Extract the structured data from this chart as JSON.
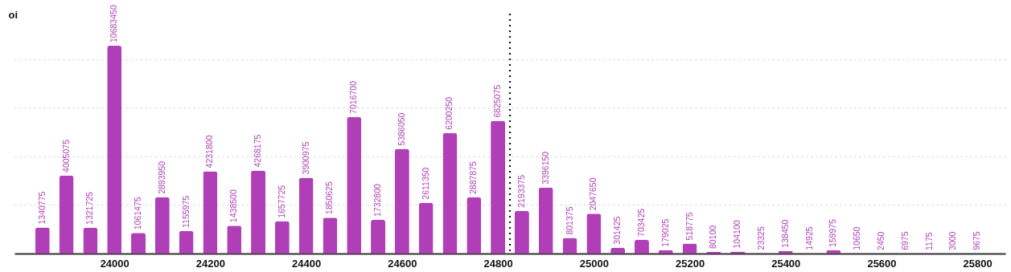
{
  "chart_data": {
    "type": "bar",
    "ylabel": "oi",
    "x": [
      23850,
      23900,
      23950,
      24000,
      24050,
      24100,
      24150,
      24200,
      24250,
      24300,
      24350,
      24400,
      24450,
      24500,
      24550,
      24600,
      24650,
      24700,
      24750,
      24800,
      24850,
      24900,
      24950,
      25000,
      25050,
      25100,
      25150,
      25200,
      25250,
      25300,
      25350,
      25400,
      25450,
      25500,
      25550,
      25600,
      25650,
      25700,
      25750,
      25800
    ],
    "values": [
      1340775,
      4005075,
      1321725,
      10683450,
      1061475,
      2893950,
      1155975,
      4231800,
      1438500,
      4268175,
      1657725,
      3900975,
      1850625,
      7016700,
      1732800,
      5386050,
      2611350,
      6200250,
      2887875,
      6825075,
      2193375,
      3396150,
      801375,
      2047650,
      301425,
      703425,
      179025,
      518775,
      80100,
      104100,
      23325,
      138450,
      14925,
      159975,
      10650,
      2450,
      6975,
      1175,
      3000,
      9675
    ],
    "color": "#b03fb7",
    "data_labels": true,
    "xlim": [
      23800,
      25850
    ],
    "xticks": [
      24000,
      24200,
      24400,
      24600,
      24800,
      25000,
      25200,
      25400,
      25600,
      25800
    ],
    "yticks": [
      {
        "value": 2500000,
        "label": null
      },
      {
        "value": 5000000,
        "label": null
      },
      {
        "value": 7500000,
        "label": null
      },
      {
        "value": 10000000,
        "label": null
      }
    ],
    "tick_labels": "x",
    "grid": "y",
    "ref_lines": [
      {
        "axis": "x",
        "value": 24825,
        "color": "#111111",
        "line_style": "dotted"
      }
    ]
  }
}
